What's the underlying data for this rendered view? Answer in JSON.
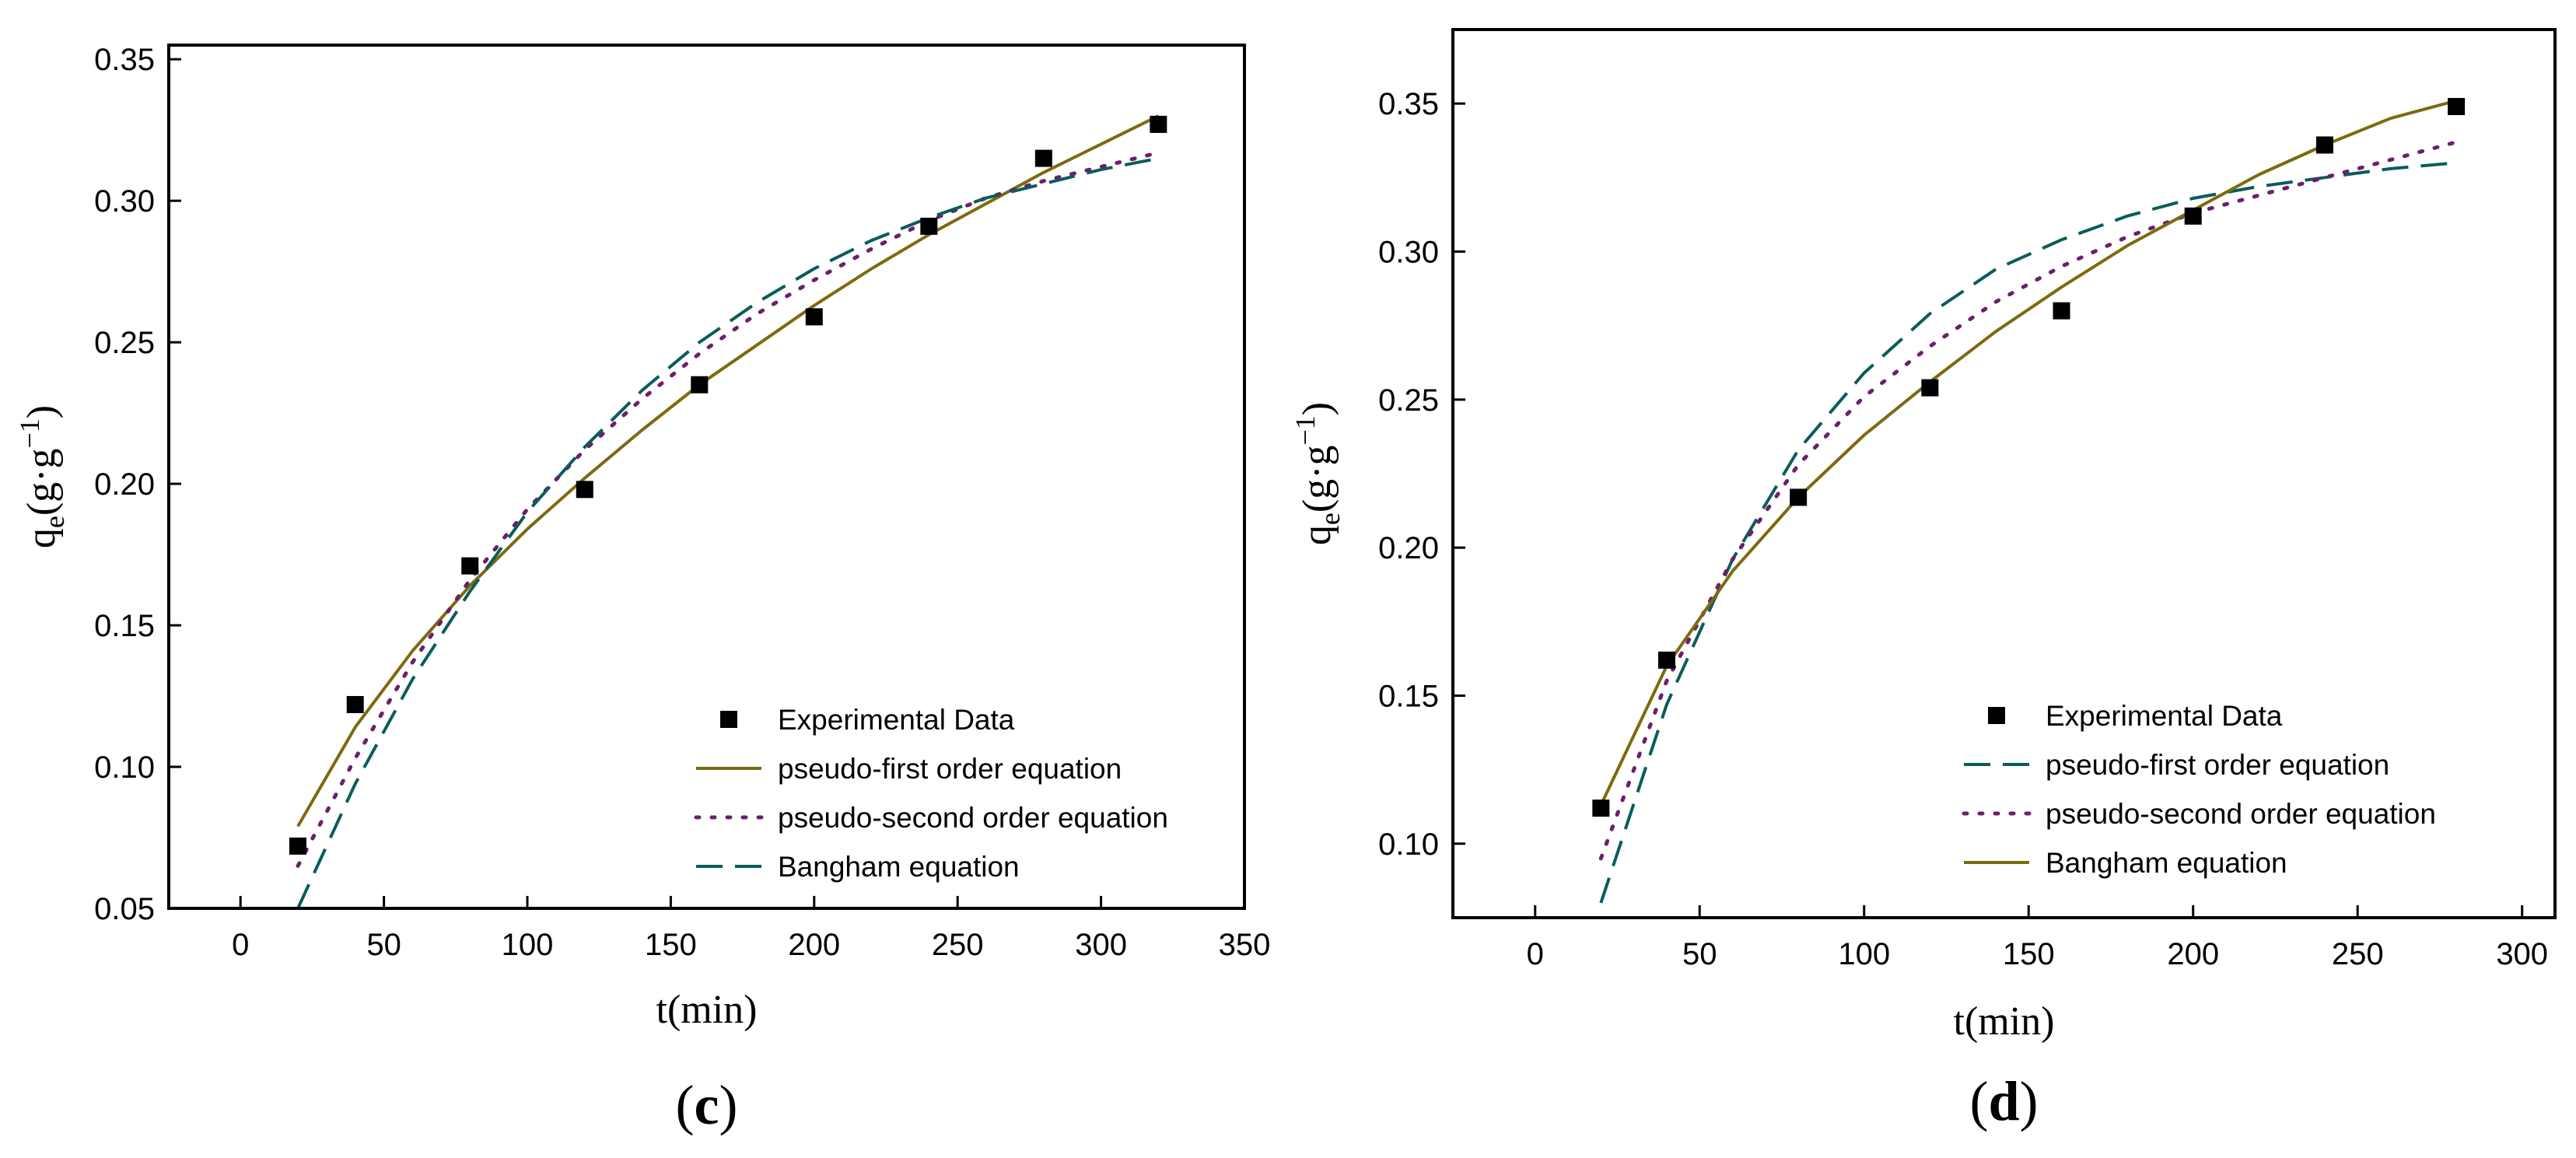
{
  "colors": {
    "experimental": "#000000",
    "olive": "#7d6a0e",
    "purple": "#6c1f6c",
    "teal": "#0b5c5c"
  },
  "chart_data": [
    {
      "type": "scatter",
      "panel_label": {
        "open": "(",
        "letter": "c",
        "close": ")"
      },
      "xlabel": "t(min)",
      "ylabel": {
        "base": "q",
        "sub": "e",
        "main": "(g·g",
        "sup": "−1",
        "close": ")"
      },
      "xlim": [
        -25,
        350
      ],
      "ylim": [
        0.05,
        0.355
      ],
      "xticks": [
        0,
        50,
        100,
        150,
        200,
        250,
        300,
        350
      ],
      "xtick_labels": [
        "0",
        "50",
        "100",
        "150",
        "200",
        "250",
        "300",
        "350"
      ],
      "yticks": [
        0.05,
        0.1,
        0.15,
        0.2,
        0.25,
        0.3,
        0.35
      ],
      "ytick_labels": [
        "0.05",
        "0.10",
        "0.15",
        "0.20",
        "0.25",
        "0.30",
        "0.35"
      ],
      "legend_position": "lower-right",
      "series": [
        {
          "name": "Experimental Data",
          "kind": "markers",
          "color": "#000000",
          "x": [
            20,
            40,
            80,
            120,
            160,
            200,
            240,
            280,
            320
          ],
          "y": [
            0.072,
            0.122,
            0.171,
            0.198,
            0.235,
            0.259,
            0.291,
            0.315,
            0.327
          ]
        },
        {
          "name": "pseudo-first order equation",
          "kind": "line",
          "dash": "solid",
          "color": "#7d6a0e",
          "x": [
            20,
            40,
            60,
            80,
            100,
            120,
            140,
            160,
            180,
            200,
            220,
            240,
            260,
            280,
            300,
            320
          ],
          "y": [
            0.079,
            0.114,
            0.141,
            0.164,
            0.184,
            0.202,
            0.219,
            0.235,
            0.249,
            0.263,
            0.276,
            0.288,
            0.299,
            0.31,
            0.32,
            0.33
          ]
        },
        {
          "name": "pseudo-second order equation",
          "kind": "line",
          "dash": "dotted",
          "color": "#6c1f6c",
          "x": [
            20,
            40,
            60,
            80,
            100,
            120,
            140,
            160,
            180,
            200,
            220,
            240,
            260,
            280,
            300,
            320
          ],
          "y": [
            0.065,
            0.103,
            0.137,
            0.166,
            0.191,
            0.212,
            0.23,
            0.246,
            0.26,
            0.272,
            0.283,
            0.293,
            0.301,
            0.307,
            0.312,
            0.317
          ]
        },
        {
          "name": "Bangham equation",
          "kind": "line",
          "dash": "dashed",
          "color": "#0b5c5c",
          "x": [
            20,
            40,
            60,
            80,
            100,
            120,
            140,
            160,
            180,
            200,
            220,
            240,
            260,
            280,
            300,
            320
          ],
          "y": [
            0.05,
            0.094,
            0.131,
            0.162,
            0.19,
            0.213,
            0.233,
            0.25,
            0.264,
            0.276,
            0.286,
            0.294,
            0.301,
            0.306,
            0.311,
            0.315
          ]
        }
      ]
    },
    {
      "type": "scatter",
      "panel_label": {
        "open": "(",
        "letter": "d",
        "close": ")"
      },
      "xlabel": "t(min)",
      "ylabel": {
        "base": "q",
        "sub": "e",
        "main": "(g·g",
        "sup": "−1",
        "close": ")"
      },
      "xlim": [
        -25,
        310
      ],
      "ylim": [
        0.075,
        0.375
      ],
      "xticks": [
        0,
        50,
        100,
        150,
        200,
        250,
        300
      ],
      "xtick_labels": [
        "0",
        "50",
        "100",
        "150",
        "200",
        "250",
        "300"
      ],
      "yticks": [
        0.1,
        0.15,
        0.2,
        0.25,
        0.3,
        0.35
      ],
      "ytick_labels": [
        "0.10",
        "0.15",
        "0.20",
        "0.25",
        "0.30",
        "0.35"
      ],
      "legend_position": "lower-right",
      "series": [
        {
          "name": "Experimental Data",
          "kind": "markers",
          "color": "#000000",
          "x": [
            20,
            40,
            80,
            120,
            160,
            200,
            240,
            280
          ],
          "y": [
            0.112,
            0.162,
            0.217,
            0.254,
            0.28,
            0.312,
            0.336,
            0.349
          ]
        },
        {
          "name": "pseudo-first order equation",
          "kind": "line",
          "dash": "dashed",
          "color": "#0b5c5c",
          "x": [
            20,
            40,
            60,
            80,
            100,
            120,
            140,
            160,
            180,
            200,
            220,
            240,
            260,
            280
          ],
          "y": [
            0.08,
            0.147,
            0.196,
            0.233,
            0.259,
            0.279,
            0.294,
            0.304,
            0.312,
            0.318,
            0.322,
            0.325,
            0.328,
            0.33
          ]
        },
        {
          "name": "pseudo-second order equation",
          "kind": "line",
          "dash": "dotted",
          "color": "#6c1f6c",
          "x": [
            20,
            40,
            60,
            80,
            100,
            120,
            140,
            160,
            180,
            200,
            220,
            240,
            260,
            280
          ],
          "y": [
            0.095,
            0.155,
            0.196,
            0.228,
            0.251,
            0.268,
            0.283,
            0.295,
            0.305,
            0.313,
            0.319,
            0.325,
            0.331,
            0.337
          ]
        },
        {
          "name": "Bangham equation",
          "kind": "line",
          "dash": "solid",
          "color": "#7d6a0e",
          "x": [
            20,
            40,
            60,
            80,
            100,
            120,
            140,
            160,
            180,
            200,
            220,
            240,
            260,
            280
          ],
          "y": [
            0.113,
            0.16,
            0.192,
            0.217,
            0.238,
            0.256,
            0.273,
            0.288,
            0.302,
            0.314,
            0.326,
            0.336,
            0.345,
            0.351
          ]
        }
      ]
    }
  ]
}
